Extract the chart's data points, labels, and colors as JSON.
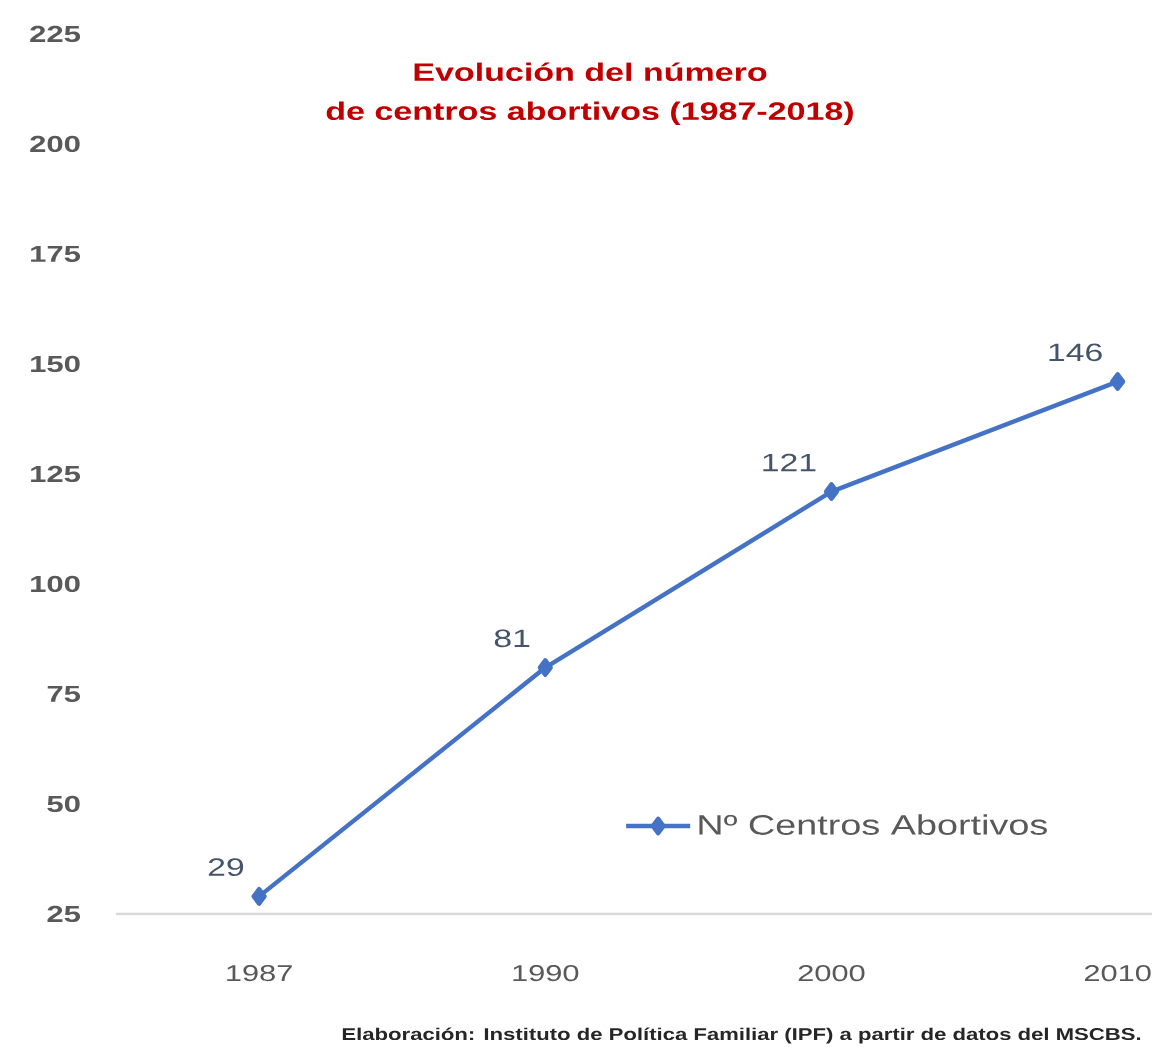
{
  "chart_data": {
    "type": "line",
    "title": "Evolución del número de centros abortivos (1987-2018)",
    "categories": [
      "1987",
      "1990",
      "2000",
      "2010"
    ],
    "series": [
      {
        "name": "Nº Centros Abortivos",
        "color": "#4472c4",
        "values": [
          29,
          81,
          121,
          146
        ]
      }
    ],
    "ylim": [
      25,
      225
    ],
    "yticks": [
      25,
      50,
      75,
      100,
      125,
      150,
      175,
      200,
      225
    ],
    "data_labels": true,
    "legend": "bottom right",
    "marker": "diamond",
    "line_style": "solid",
    "grid": false,
    "annotations": [
      "Elaboración: Instituto de Política Familiar (IPF) a partir de datos del MSCBS."
    ]
  }
}
